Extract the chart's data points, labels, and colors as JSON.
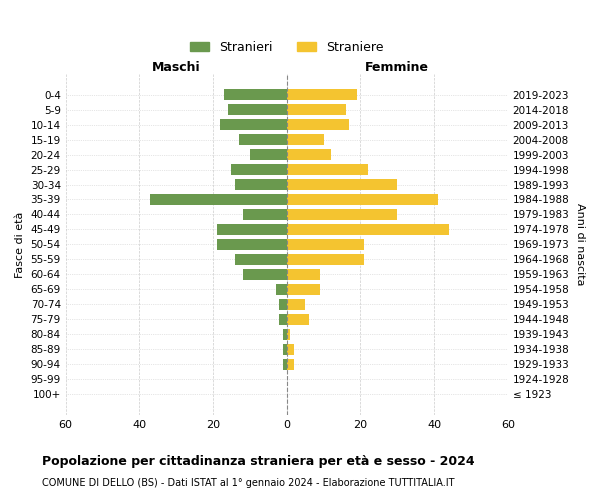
{
  "age_groups": [
    "100+",
    "95-99",
    "90-94",
    "85-89",
    "80-84",
    "75-79",
    "70-74",
    "65-69",
    "60-64",
    "55-59",
    "50-54",
    "45-49",
    "40-44",
    "35-39",
    "30-34",
    "25-29",
    "20-24",
    "15-19",
    "10-14",
    "5-9",
    "0-4"
  ],
  "birth_years": [
    "≤ 1923",
    "1924-1928",
    "1929-1933",
    "1934-1938",
    "1939-1943",
    "1944-1948",
    "1949-1953",
    "1954-1958",
    "1959-1963",
    "1964-1968",
    "1969-1973",
    "1974-1978",
    "1979-1983",
    "1984-1988",
    "1989-1993",
    "1994-1998",
    "1999-2003",
    "2004-2008",
    "2009-2013",
    "2014-2018",
    "2019-2023"
  ],
  "maschi": [
    0,
    0,
    1,
    1,
    1,
    2,
    2,
    3,
    12,
    14,
    19,
    19,
    12,
    37,
    14,
    15,
    10,
    13,
    18,
    16,
    17
  ],
  "femmine": [
    0,
    0,
    2,
    2,
    1,
    6,
    5,
    9,
    9,
    21,
    21,
    44,
    30,
    41,
    30,
    22,
    12,
    10,
    17,
    16,
    19
  ],
  "maschi_color": "#6a994e",
  "femmine_color": "#f4c430",
  "background_color": "#ffffff",
  "grid_color": "#cccccc",
  "title": "Popolazione per cittadinanza straniera per età e sesso - 2024",
  "subtitle": "COMUNE DI DELLO (BS) - Dati ISTAT al 1° gennaio 2024 - Elaborazione TUTTITALIA.IT",
  "xlabel_left": "Maschi",
  "xlabel_right": "Femmine",
  "ylabel_left": "Fasce di età",
  "ylabel_right": "Anni di nascita",
  "legend_maschi": "Stranieri",
  "legend_femmine": "Straniere",
  "xlim": 60,
  "bar_height": 0.7,
  "center_line_color": "#888888"
}
